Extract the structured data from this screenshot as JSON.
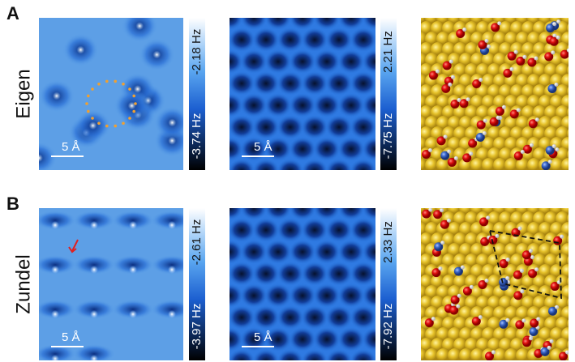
{
  "rows": [
    {
      "label": "A",
      "name": "Eigen",
      "panels": [
        {
          "scale_bar": "5 Å",
          "cbar_max": "-2.18 Hz",
          "cbar_min": "-3.74 Hz"
        },
        {
          "scale_bar": "5 Å",
          "cbar_max": "2.21 Hz",
          "cbar_min": "-7.75 Hz"
        }
      ]
    },
    {
      "label": "B",
      "name": "Zundel",
      "panels": [
        {
          "scale_bar": "5 Å",
          "cbar_max": "-2.61 Hz",
          "cbar_min": "-3.97 Hz"
        },
        {
          "scale_bar": "5 Å",
          "cbar_max": "2.33 Hz",
          "cbar_min": "-7.92 Hz"
        }
      ]
    }
  ]
}
